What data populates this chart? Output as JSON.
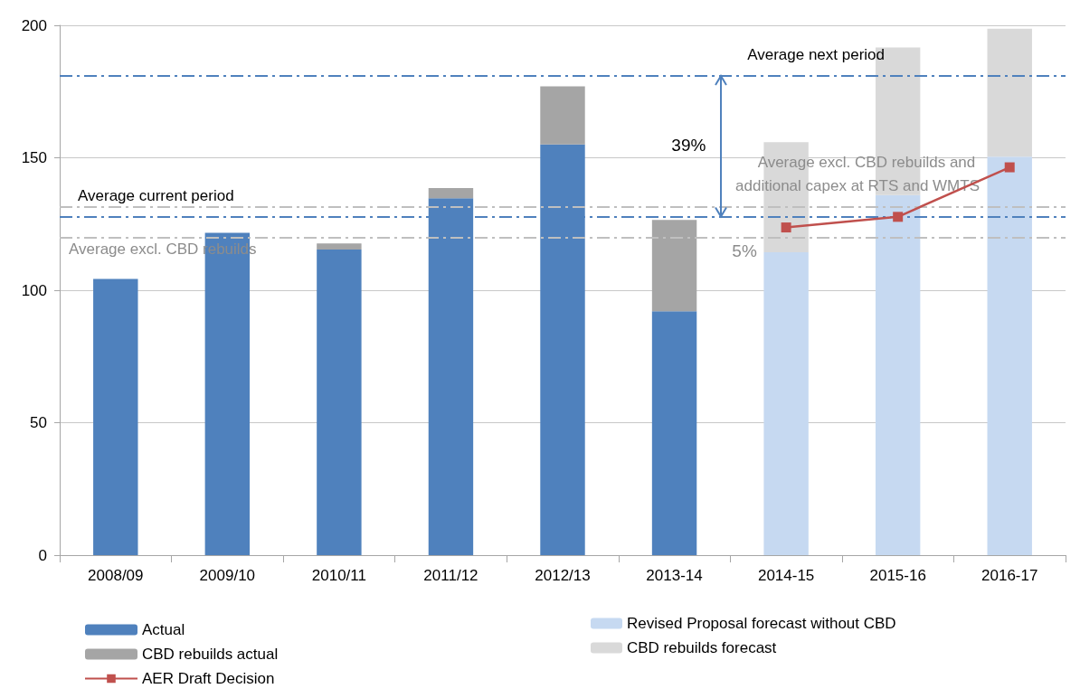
{
  "chart_data": {
    "type": "bar",
    "stacked": true,
    "categories": [
      "2008/09",
      "2009/10",
      "2010/11",
      "2011/12",
      "2012/13",
      "2013-14",
      "2014-15",
      "2015-16",
      "2016-17"
    ],
    "series": [
      {
        "name": "Actual",
        "color": "#4f81bd",
        "values": [
          104.3,
          121.7,
          115.4,
          134.7,
          155.0,
          92.1,
          null,
          null,
          null
        ]
      },
      {
        "name": "CBD rebuilds actual",
        "color": "#a5a5a5",
        "values": [
          null,
          null,
          2.3,
          3.9,
          22.0,
          34.4,
          null,
          null,
          null
        ]
      },
      {
        "name": "Revised Proposal forecast without CBD",
        "color": "#c6d9f1",
        "values": [
          null,
          null,
          null,
          null,
          null,
          null,
          114.3,
          135.9,
          150.4
        ]
      },
      {
        "name": "CBD rebuilds forecast",
        "color": "#d9d9d9",
        "values": [
          null,
          null,
          null,
          null,
          null,
          null,
          41.6,
          55.7,
          48.3
        ]
      },
      {
        "name": "AER Draft Decision",
        "type": "line",
        "color": "#c0504d",
        "marker": "square",
        "values": [
          null,
          null,
          null,
          null,
          null,
          null,
          123.7,
          127.7,
          146.4
        ]
      }
    ],
    "ylim": [
      0,
      200
    ],
    "yticks": [
      0,
      50,
      100,
      150,
      200
    ],
    "grid": "y",
    "legend": "bottom",
    "ref_lines": [
      {
        "axis": "y",
        "value": 127.9,
        "label": "Average current period",
        "color": "#4f81bd",
        "line_style": "dashdot"
      },
      {
        "axis": "y",
        "value": 119.8,
        "label": "Average excl. CBD rebuilds",
        "color": "#bfbfbf",
        "line_style": "dashdot"
      },
      {
        "axis": "y",
        "value": 181.0,
        "label": "Average next period",
        "color": "#4f81bd",
        "line_style": "dashdot"
      },
      {
        "axis": "y",
        "value": 131.5,
        "label": "Average excl. CBD rebuilds and additional capex at RTS and WMTS",
        "color": "#bfbfbf",
        "line_style": "dashdot"
      }
    ],
    "annotations": [
      "39%",
      "5%"
    ]
  }
}
